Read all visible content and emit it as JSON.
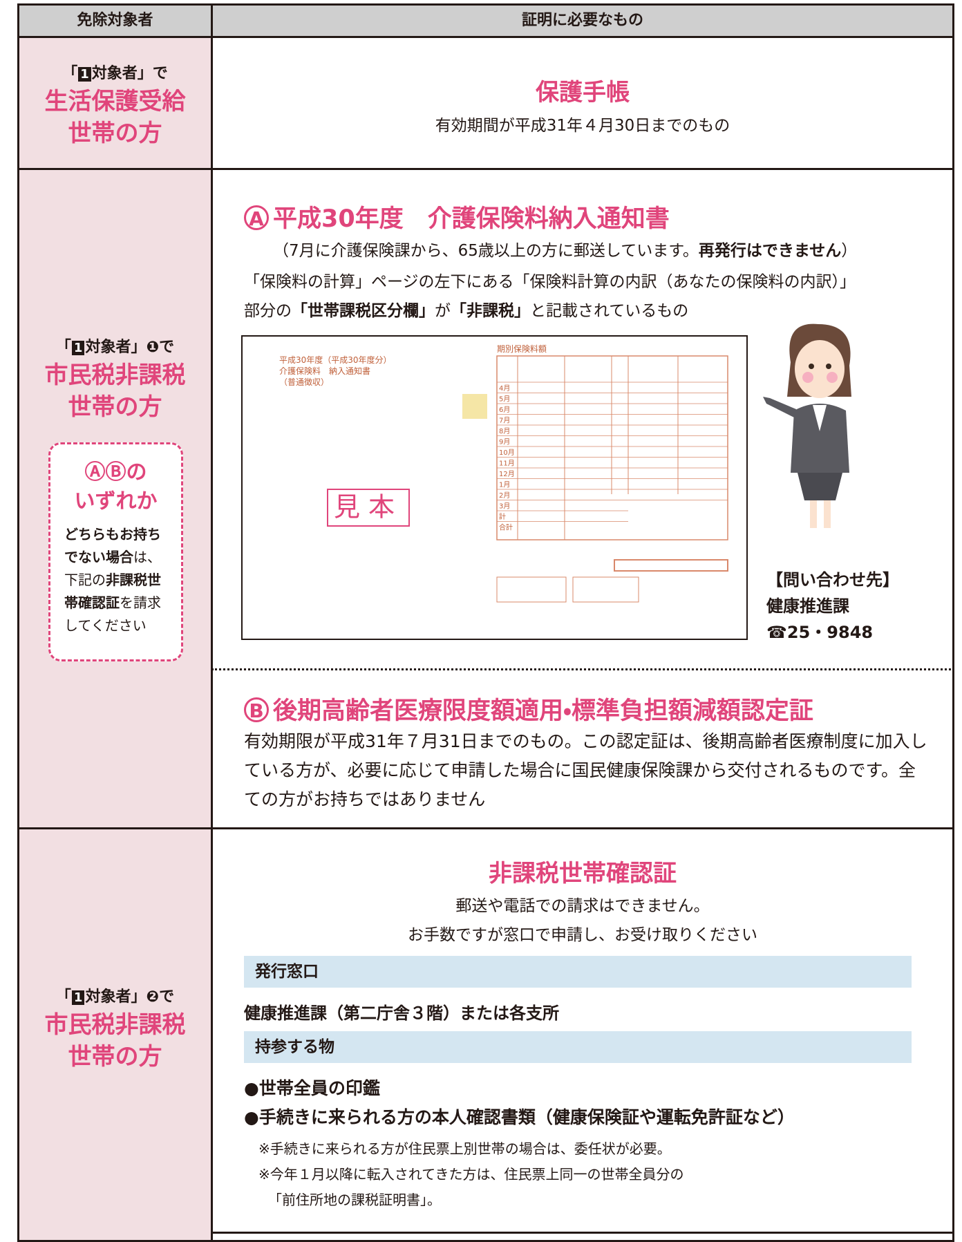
{
  "header": {
    "target": "免除対象者",
    "proof": "証明に必要なもの"
  },
  "rows": [
    {
      "target": {
        "condition": [
          {
            "text": "「"
          },
          {
            "text": "1",
            "box": true
          },
          {
            "text": "対象者」で"
          }
        ],
        "group": [
          "生活保護受給",
          "世帯の方"
        ]
      },
      "proof": {
        "title": "保護手帳",
        "note": "有効期間が平成31年４月30日までのもの"
      }
    },
    {
      "target": {
        "condition": [
          {
            "text": "「"
          },
          {
            "text": "1",
            "box": true
          },
          {
            "text": "対象者」❶で"
          }
        ],
        "group": [
          "市民税非課税",
          "世帯の方"
        ],
        "choice": {
          "title": [
            "ⒶⒷの",
            "いずれか"
          ],
          "note": [
            {
              "text": "どちらもお持ちでない場合",
              "bold": true
            },
            {
              "text": "は、下記の"
            },
            {
              "text": "非課税世帯確認証",
              "bold": true
            },
            {
              "text": "を請求してください"
            }
          ]
        }
      },
      "proof": {
        "option_a": {
          "mark": "A",
          "title": "平成30年度　介護保険料納入通知書",
          "lines": [
            [
              {
                "text": "（7月に介護保険課から、65歳以上の方に郵送しています。"
              },
              {
                "text": "再発行はできません",
                "bold": true
              },
              {
                "text": "）"
              }
            ],
            [
              {
                "text": "「保険料の計算」ページの左下にある「保険料計算の内訳（あなたの保険料の内訳）」"
              }
            ],
            [
              {
                "text": "部分の"
              },
              {
                "text": "「世帯課税区分欄」",
                "bold": true
              },
              {
                "text": "が"
              },
              {
                "text": "「非課税」",
                "bold": true
              },
              {
                "text": "と記載されているもの"
              }
            ]
          ],
          "sample": {
            "heading": [
              "平成30年度（平成30年度分）",
              "介護保険料　納入通知書",
              "（普通徴収）"
            ],
            "table_title": "期別保険料額",
            "months": [
              "4月",
              "5月",
              "6月",
              "7月",
              "8月",
              "9月",
              "10月",
              "11月",
              "12月",
              "1月",
              "2月",
              "3月",
              "計",
              "合計"
            ],
            "stamp": "見本"
          },
          "contact": {
            "label": "【問い合わせ先】",
            "dept": "健康推進課",
            "tel": "☎25・9848"
          }
        },
        "option_b": {
          "mark": "B",
          "title": "後期高齢者医療限度額適用・標準負担額減額認定証",
          "text": "有効期限が平成31年７月31日までのもの。この認定証は、後期高齢者医療制度に加入している方が、必要に応じて申請した場合に国民健康保険課から交付されるものです。全ての方がお持ちではありません"
        }
      }
    },
    {
      "target": {
        "condition": [
          {
            "text": "「"
          },
          {
            "text": "1",
            "box": true
          },
          {
            "text": "対象者」❷で"
          }
        ],
        "group": [
          "市民税非課税",
          "世帯の方"
        ]
      },
      "proof": {
        "title": "非課税世帯確認証",
        "notes": [
          "郵送や電話での請求はできません。",
          "お手数ですが窓口で申請し、お受け取りください"
        ],
        "office": {
          "heading": "発行窓口",
          "body": "健康推進課（第二庁舎３階）または各支所"
        },
        "items": {
          "heading": "持参する物",
          "list": [
            "世帯全員の印鑑",
            "手続きに来られる方の本人確認書類（健康保険証や運転免許証など）"
          ],
          "notes": [
            "※手続きに来られる方が住民票上別世帯の場合は、委任状が必要。",
            "※今年１月以降に転入されてきた方は、住民票上同一の世帯全員分の",
            "「前住所地の課税証明書」。"
          ]
        }
      }
    }
  ]
}
